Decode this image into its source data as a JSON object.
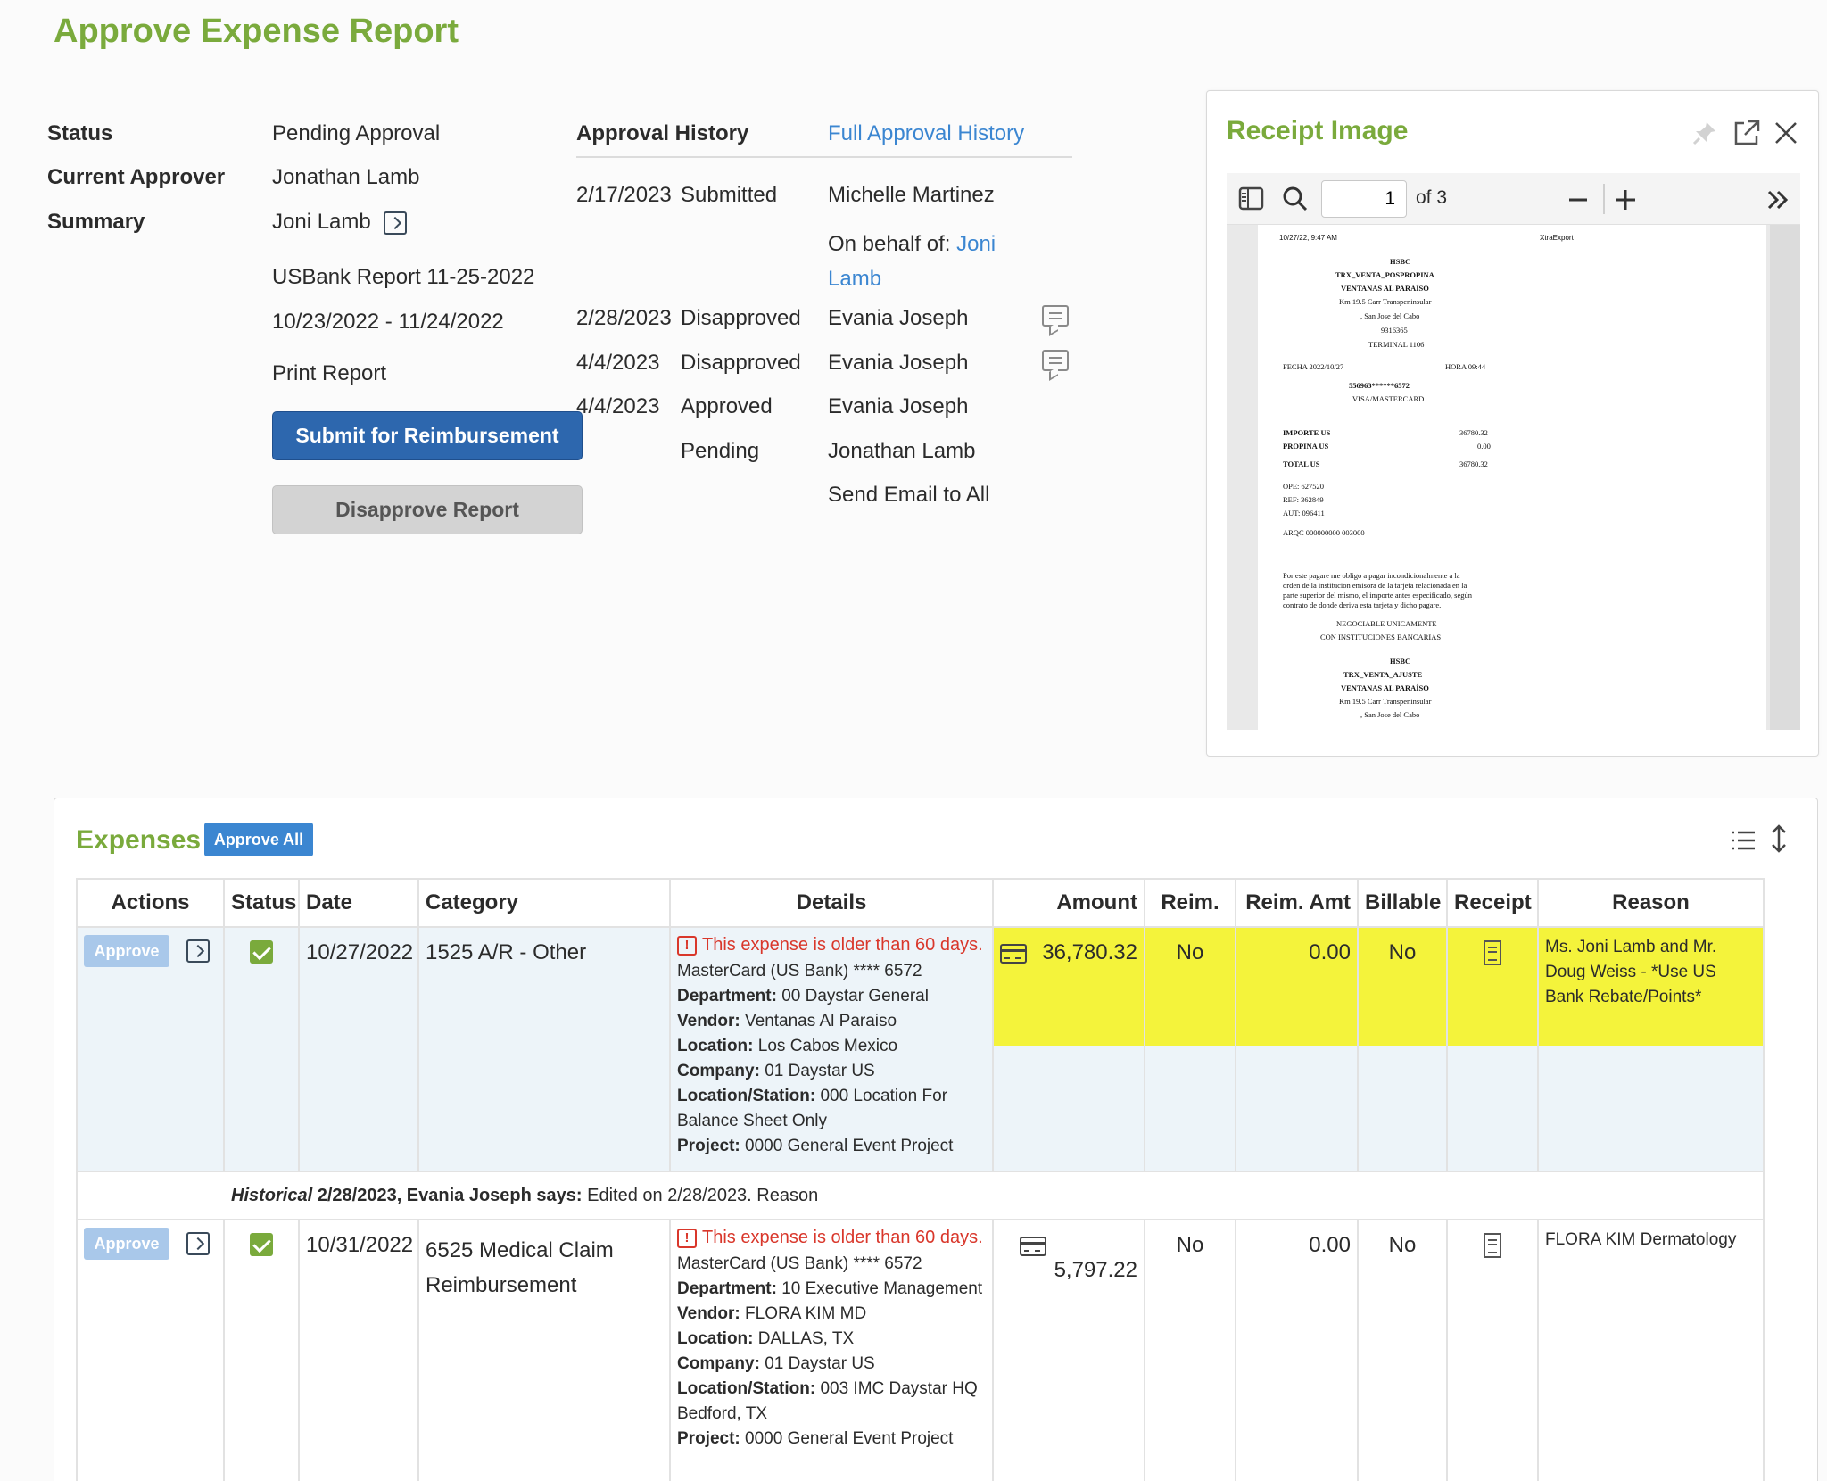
{
  "page": {
    "title": "Approve Expense Report"
  },
  "report": {
    "status_label": "Status",
    "status_value": "Pending Approval",
    "approver_label": "Current Approver",
    "approver_value": "Jonathan Lamb",
    "summary_label": "Summary",
    "summary_value": "Joni Lamb",
    "report_name": "USBank Report 11-25-2022",
    "date_range": "10/23/2022 - 11/24/2022",
    "print_link": "Print Report",
    "submit_button": "Submit for Reimbursement",
    "disapprove_button": "Disapprove Report"
  },
  "history": {
    "heading": "Approval History",
    "full_link": "Full Approval History",
    "on_behalf_prefix": "On behalf of:",
    "on_behalf_first": "Joni",
    "on_behalf_last": "Lamb",
    "send_email": "Send Email to All",
    "rows": [
      {
        "date": "2/17/2023",
        "action": "Submitted",
        "person": "Michelle Martinez"
      },
      {
        "date": "2/28/2023",
        "action": "Disapproved",
        "person": "Evania Joseph"
      },
      {
        "date": "4/4/2023",
        "action": "Disapproved",
        "person": "Evania Joseph"
      },
      {
        "date": "4/4/2023",
        "action": "Approved",
        "person": "Evania Joseph"
      },
      {
        "date": "",
        "action": "Pending",
        "person": "Jonathan Lamb"
      }
    ]
  },
  "receipt": {
    "title": "Receipt Image",
    "page_input": "1",
    "page_total": "of 3",
    "doc_lines": {
      "stamp": "10/27/22, 9:47 AM",
      "export": "XtraExport",
      "bank": "HSBC",
      "trx": "TRX_VENTA_POSPROPINA",
      "merchant": "VENTANAS AL PARAÍSO",
      "addr1": "Km 19.5 Carr Transpeninsular",
      "addr2": ", San Jose del Cabo",
      "phone": "9316365",
      "terminal": "TERMINAL 1106",
      "fecha": "FECHA 2022/10/27",
      "hora": "HORA 09:44",
      "card": "556963******6572",
      "network": "VISA/MASTERCARD",
      "importe_l": "IMPORTE US",
      "importe_v": "36780.32",
      "propina_l": "PROPINA US",
      "propina_v": "0.00",
      "total_l": "TOTAL US",
      "total_v": "36780.32",
      "ope": "OPE: 627520",
      "ref": "REF: 362849",
      "aut": "AUT: 096411",
      "arqc": "ARQC 000000000   003000",
      "legal1": "Por este pagare me obligo a pagar incondicionalmente a la",
      "legal2": "orden de la institucion emisora de la tarjeta relacionada en la",
      "legal3": "parte superior del mismo, el importe antes especificado, según",
      "legal4": "contrato de donde deriva esta tarjeta y dicho pagare.",
      "neg1": "NEGOCIABLE UNICAMENTE",
      "neg2": "CON INSTITUCIONES BANCARIAS",
      "bank2": "HSBC",
      "trx2": "TRX_VENTA_AJUSTE",
      "merchant2": "VENTANAS AL PARAÍSO",
      "addr3": "Km 19.5 Carr Transpeninsular",
      "addr4": ", San Jose del Cabo"
    }
  },
  "expenses": {
    "title": "Expenses",
    "approve_all": "Approve All",
    "columns": [
      "Actions",
      "Status",
      "Date",
      "Category",
      "Details",
      "Amount",
      "Reim.",
      "Reim. Amt",
      "Billable",
      "Receipt",
      "Reason"
    ],
    "approve_label": "Approve",
    "rows": [
      {
        "date": "10/27/2022",
        "category": "1525 A/R - Other",
        "warning": "This expense is older than 60 days.",
        "card": "MasterCard (US Bank) **** 6572",
        "department_label": "Department:",
        "department": "00 Daystar General",
        "vendor_label": "Vendor:",
        "vendor": "Ventanas Al Paraiso",
        "location_label": "Location:",
        "location": "Los Cabos Mexico",
        "company_label": "Company:",
        "company": "01 Daystar US",
        "station_label": "Location/Station:",
        "station": "000 Location For Balance Sheet Only",
        "project_label": "Project:",
        "project": "0000 General Event Project",
        "amount": "36,780.32",
        "reim": "No",
        "reim_amt": "0.00",
        "billable": "No",
        "reason": "Ms. Joni Lamb and Mr. Doug Weiss - *Use US Bank Rebate/Points*"
      },
      {
        "date": "10/31/2022",
        "category": "6525 Medical Claim Reimbursement",
        "warning": "This expense is older than 60 days.",
        "card": "MasterCard (US Bank) **** 6572",
        "department_label": "Department:",
        "department": "10 Executive Management",
        "vendor_label": "Vendor:",
        "vendor": "FLORA KIM MD",
        "location_label": "Location:",
        "location": "DALLAS, TX",
        "company_label": "Company:",
        "company": "01 Daystar US",
        "station_label": "Location/Station:",
        "station": "003 IMC Daystar HQ Bedford, TX",
        "project_label": "Project:",
        "project": "0000 General Event Project",
        "amount": "5,797.22",
        "reim": "No",
        "reim_amt": "0.00",
        "billable": "No",
        "reason": "FLORA KIM Dermatology"
      }
    ],
    "history_note": {
      "label": "Historical",
      "text_bold": "2/28/2023, Evania Joseph says:",
      "text": "Edited on 2/28/2023. Reason"
    }
  }
}
